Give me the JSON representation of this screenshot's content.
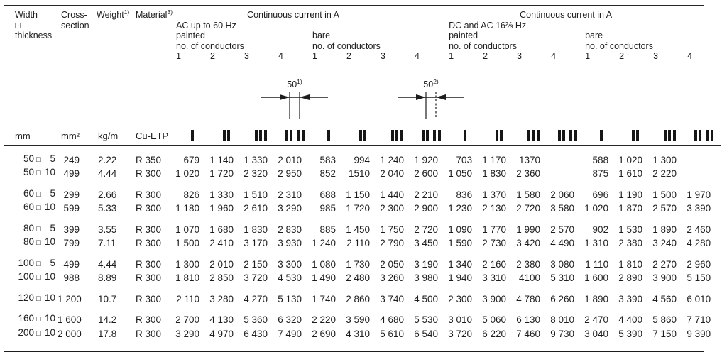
{
  "colors": {
    "text": "#1d1d1d",
    "rule": "#262626",
    "background": "#ffffff"
  },
  "glyphs": {
    "size_box": "□"
  },
  "header": {
    "size": {
      "l1": "Width",
      "l2": "□",
      "l3": "thickness"
    },
    "cross": {
      "l1": "Cross-",
      "l2": "section"
    },
    "weight": {
      "text": "Weight",
      "sup": "1)"
    },
    "material": {
      "text": "Material",
      "sup": "3)"
    },
    "sections": {
      "ac": {
        "title": "Continuous current in A",
        "subtitle": "AC up to 60 Hz"
      },
      "dc": {
        "title": "Continuous current in A",
        "subtitle": "DC and AC 16⅔ Hz"
      },
      "painted": "painted",
      "bare": "bare",
      "conductors": "no. of conductors",
      "cols": [
        "1",
        "2",
        "3",
        "4"
      ]
    }
  },
  "dimensions": {
    "left": {
      "value": "50",
      "sup": "1)"
    },
    "right": {
      "value": "50",
      "sup": "2)"
    }
  },
  "units": {
    "size": "mm",
    "cross": "mm²",
    "weight": "kg/m",
    "material": "Cu-ETP"
  },
  "symbols": [
    {
      "name": "conductor-1-icon",
      "groups": [
        1
      ]
    },
    {
      "name": "conductor-2-icon",
      "groups": [
        2
      ]
    },
    {
      "name": "conductor-3-icon",
      "groups": [
        3
      ]
    },
    {
      "name": "conductor-4-icon",
      "groups": [
        2,
        2
      ]
    }
  ],
  "rows": [
    {
      "width": "50",
      "thickness": "5",
      "cross_section": "249",
      "weight": "2.22",
      "material": "R 350",
      "ac_painted": [
        "679",
        "1 140",
        "1 330",
        "2 010"
      ],
      "ac_bare": [
        "583",
        "994",
        "1 240",
        "1 920"
      ],
      "dc_painted": [
        "703",
        "1 170",
        "1370",
        ""
      ],
      "dc_bare": [
        "588",
        "1 020",
        "1 300",
        ""
      ]
    },
    {
      "width": "50",
      "thickness": "10",
      "cross_section": "499",
      "weight": "4.44",
      "material": "R 300",
      "ac_painted": [
        "1 020",
        "1 720",
        "2 320",
        "2 950"
      ],
      "ac_bare": [
        "852",
        "1510",
        "2 040",
        "2 600"
      ],
      "dc_painted": [
        "1 050",
        "1 830",
        "2 360",
        ""
      ],
      "dc_bare": [
        "875",
        "1 610",
        "2 220",
        ""
      ]
    },
    {
      "gap": true,
      "width": "60",
      "thickness": "5",
      "cross_section": "299",
      "weight": "2.66",
      "material": "R 300",
      "ac_painted": [
        "826",
        "1 330",
        "1 510",
        "2 310"
      ],
      "ac_bare": [
        "688",
        "1 150",
        "1 440",
        "2 210"
      ],
      "dc_painted": [
        "836",
        "1 370",
        "1 580",
        "2 060"
      ],
      "dc_bare": [
        "696",
        "1 190",
        "1 500",
        "1 970"
      ]
    },
    {
      "width": "60",
      "thickness": "10",
      "cross_section": "599",
      "weight": "5.33",
      "material": "R 300",
      "ac_painted": [
        "1 180",
        "1 960",
        "2 610",
        "3 290"
      ],
      "ac_bare": [
        "985",
        "1 720",
        "2 300",
        "2 900"
      ],
      "dc_painted": [
        "1 230",
        "2 130",
        "2 720",
        "3 580"
      ],
      "dc_bare": [
        "1 020",
        "1 870",
        "2 570",
        "3 390"
      ]
    },
    {
      "gap": true,
      "width": "80",
      "thickness": "5",
      "cross_section": "399",
      "weight": "3.55",
      "material": "R 300",
      "ac_painted": [
        "1 070",
        "1 680",
        "1 830",
        "2 830"
      ],
      "ac_bare": [
        "885",
        "1 450",
        "1 750",
        "2 720"
      ],
      "dc_painted": [
        "1 090",
        "1 770",
        "1 990",
        "2 570"
      ],
      "dc_bare": [
        "902",
        "1 530",
        "1 890",
        "2 460"
      ]
    },
    {
      "width": "80",
      "thickness": "10",
      "cross_section": "799",
      "weight": "7.11",
      "material": "R 300",
      "ac_painted": [
        "1 500",
        "2 410",
        "3 170",
        "3 930"
      ],
      "ac_bare": [
        "1 240",
        "2 110",
        "2 790",
        "3 450"
      ],
      "dc_painted": [
        "1 590",
        "2 730",
        "3 420",
        "4 490"
      ],
      "dc_bare": [
        "1 310",
        "2 380",
        "3 240",
        "4 280"
      ]
    },
    {
      "gap": true,
      "width": "100",
      "thickness": "5",
      "cross_section": "499",
      "weight": "4.44",
      "material": "R 300",
      "ac_painted": [
        "1 300",
        "2 010",
        "2 150",
        "3 300"
      ],
      "ac_bare": [
        "1 080",
        "1 730",
        "2 050",
        "3 190"
      ],
      "dc_painted": [
        "1 340",
        "2 160",
        "2 380",
        "3 080"
      ],
      "dc_bare": [
        "1 110",
        "1 810",
        "2 270",
        "2 960"
      ]
    },
    {
      "width": "100",
      "thickness": "10",
      "cross_section": "988",
      "weight": "8.89",
      "material": "R 300",
      "ac_painted": [
        "1 810",
        "2 850",
        "3 720",
        "4 530"
      ],
      "ac_bare": [
        "1 490",
        "2 480",
        "3 260",
        "3 980"
      ],
      "dc_painted": [
        "1 940",
        "3 310",
        "4100",
        "5 310"
      ],
      "dc_bare": [
        "1 600",
        "2 890",
        "3 900",
        "5 150"
      ]
    },
    {
      "gap": true,
      "width": "120",
      "thickness": "10",
      "cross_section": "1 200",
      "weight": "10.7",
      "material": "R 300",
      "ac_painted": [
        "2 110",
        "3 280",
        "4 270",
        "5 130"
      ],
      "ac_bare": [
        "1 740",
        "2 860",
        "3 740",
        "4 500"
      ],
      "dc_painted": [
        "2 300",
        "3 900",
        "4 780",
        "6 260"
      ],
      "dc_bare": [
        "1 890",
        "3 390",
        "4 560",
        "6 010"
      ]
    },
    {
      "gap": true,
      "width": "160",
      "thickness": "10",
      "cross_section": "1 600",
      "weight": "14.2",
      "material": "R 300",
      "ac_painted": [
        "2 700",
        "4 130",
        "5 360",
        "6 320"
      ],
      "ac_bare": [
        "2 220",
        "3 590",
        "4 680",
        "5 530"
      ],
      "dc_painted": [
        "3 010",
        "5 060",
        "6 130",
        "8 010"
      ],
      "dc_bare": [
        "2 470",
        "4 400",
        "5 860",
        "7 710"
      ]
    },
    {
      "width": "200",
      "thickness": "10",
      "cross_section": "2 000",
      "weight": "17.8",
      "material": "R 300",
      "ac_painted": [
        "3 290",
        "4 970",
        "6 430",
        "7 490"
      ],
      "ac_bare": [
        "2 690",
        "4 310",
        "5 610",
        "6 540"
      ],
      "dc_painted": [
        "3 720",
        "6 220",
        "7 460",
        "9 730"
      ],
      "dc_bare": [
        "3 040",
        "5 390",
        "7 150",
        "9 390"
      ]
    }
  ]
}
